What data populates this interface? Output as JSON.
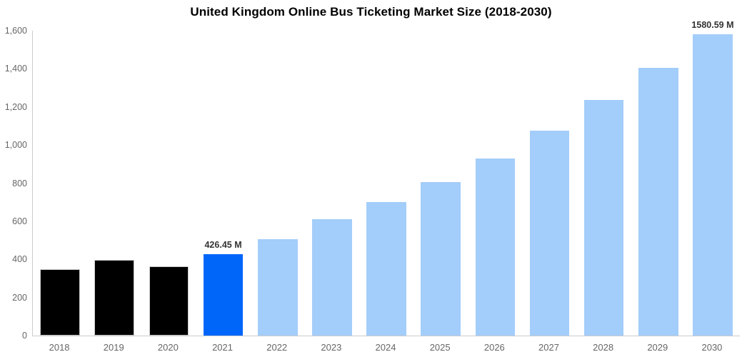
{
  "chart_data": {
    "type": "bar",
    "title": "United Kingdom Online Bus Ticketing Market Size (2018-2030)",
    "categories": [
      "2018",
      "2019",
      "2020",
      "2021",
      "2022",
      "2023",
      "2024",
      "2025",
      "2026",
      "2027",
      "2028",
      "2029",
      "2030"
    ],
    "values": [
      347,
      396,
      362,
      426.45,
      505,
      610,
      699,
      805,
      929,
      1076,
      1236,
      1406,
      1580.59
    ],
    "bar_roles": [
      "historical",
      "historical",
      "historical",
      "base-year",
      "forecast",
      "forecast",
      "forecast",
      "forecast",
      "forecast",
      "forecast",
      "forecast",
      "forecast",
      "forecast"
    ],
    "data_labels": [
      "",
      "",
      "",
      "426.45 M",
      "",
      "",
      "",
      "",
      "",
      "",
      "",
      "",
      "1580.59 M"
    ],
    "palette": {
      "historical": "#000000",
      "base-year": "#0066fa",
      "forecast": "#a3cdfa"
    },
    "axis_colors": {
      "line": "#cccccc",
      "tick_text": "#666666",
      "data_label_text": "#333333"
    },
    "ylim": [
      0,
      1600
    ],
    "ytick_values": [
      0,
      200,
      400,
      600,
      800,
      1000,
      1200,
      1400,
      1600
    ],
    "ytick_labels": [
      "0",
      "200",
      "400",
      "600",
      "800",
      "1,000",
      "1,200",
      "1,400",
      "1,600"
    ],
    "xlabel": "",
    "ylabel": "",
    "unit": "M",
    "grid": false,
    "legend": false
  }
}
